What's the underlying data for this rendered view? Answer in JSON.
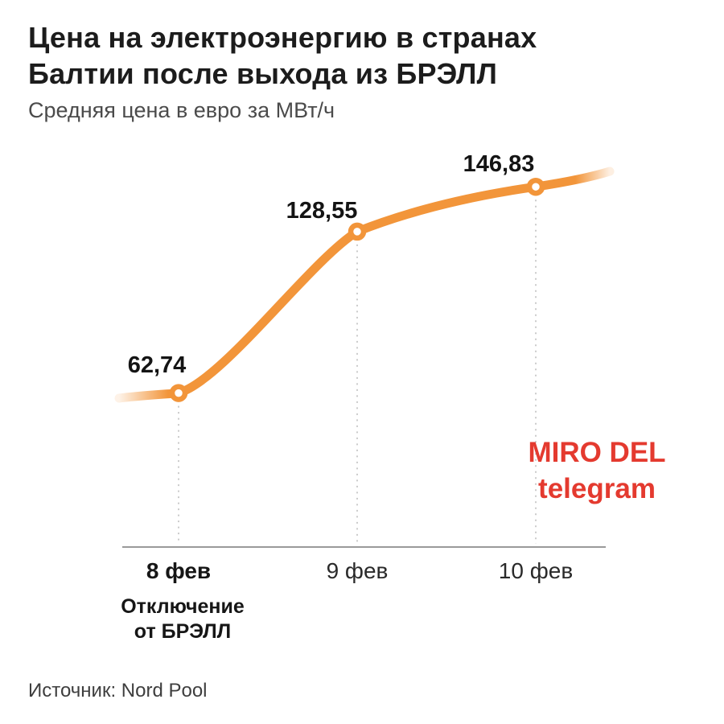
{
  "title": {
    "line1": "Цена на электроэнергию в странах",
    "line2": "Балтии после выхода из БРЭЛЛ"
  },
  "subtitle": "Средняя цена в евро за МВт/ч",
  "source": "Источник: Nord Pool",
  "watermark": {
    "line1": "MIRO DEL",
    "line2": "telegram",
    "color": "#e43a2f"
  },
  "chart_data": {
    "type": "line",
    "categories": [
      "8 фев",
      "9 фев",
      "10 фев"
    ],
    "values": [
      62.74,
      128.55,
      146.83
    ],
    "value_labels": [
      "62,74",
      "128,55",
      "146,83"
    ],
    "x_annotation": {
      "category": "8 фев",
      "lines": [
        "Отключение",
        "от БРЭЛЛ"
      ]
    },
    "title": "Цена на электроэнергию в странах Балтии после выхода из БРЭЛЛ",
    "ylabel": "Средняя цена в евро за МВт/ч",
    "ylim": [
      0,
      180
    ],
    "grid": false,
    "legend": "none",
    "line_color": "#f2953a",
    "marker_style": "open-circle",
    "dashed_dropline_color": "#b5b5b5",
    "axis_color": "#9a9a9a",
    "emphasized_category": "8 фев"
  }
}
